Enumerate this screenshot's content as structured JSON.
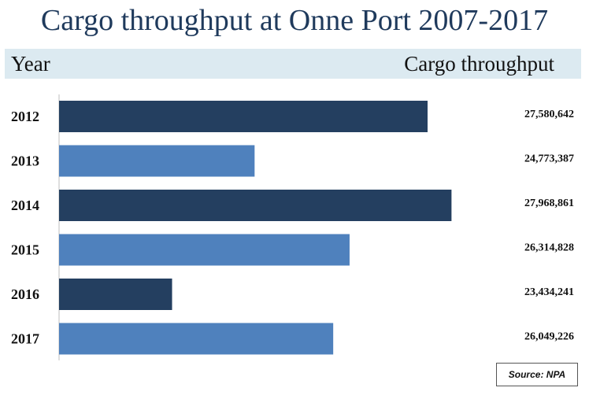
{
  "chart_data": {
    "type": "bar",
    "orientation": "horizontal",
    "title": "Cargo throughput at Onne Port 2007-2017",
    "xlabel": "Cargo throughput",
    "ylabel": "Year",
    "categories": [
      "2012",
      "2013",
      "2014",
      "2015",
      "2016",
      "2017"
    ],
    "values": [
      27580642,
      24773387,
      27968861,
      26314828,
      23434241,
      26049226
    ],
    "value_labels": [
      "27,580,642",
      "24,773,387",
      "27,968,861",
      "26,314,828",
      "23,434,241",
      "26,049,226"
    ],
    "xlim": [
      21600000,
      28600000
    ],
    "grid": false,
    "legend": "none",
    "colors": [
      "#243f60",
      "#4f81bd",
      "#243f60",
      "#4f81bd",
      "#243f60",
      "#4f81bd"
    ],
    "source": "Source: NPA"
  }
}
